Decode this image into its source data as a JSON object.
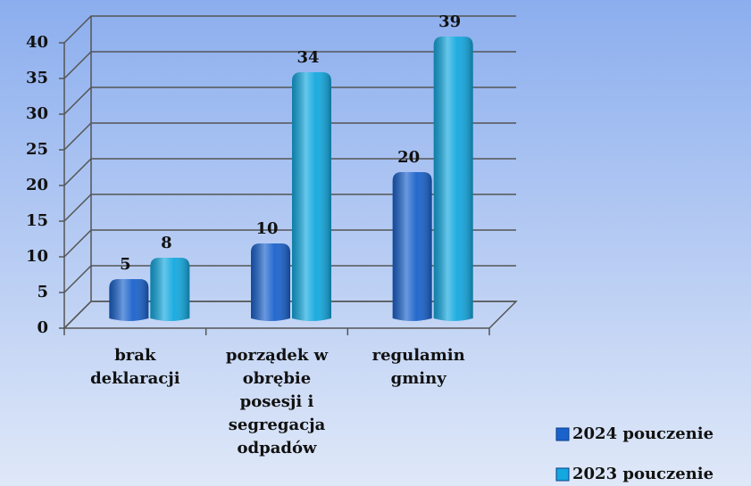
{
  "chart_data": {
    "type": "bar3d",
    "categories": [
      "brak deklaracji",
      "porządek w obrębie posesji i segregacja odpadów",
      "regulamin gminy"
    ],
    "series": [
      {
        "name": "2024 pouczenie",
        "color": "#1a62cc",
        "values": [
          5,
          10,
          20
        ]
      },
      {
        "name": "2023 pouczenie",
        "color": "#13a8df",
        "values": [
          8,
          34,
          39
        ]
      }
    ],
    "ylim": [
      0,
      40
    ],
    "yticks": [
      0,
      5,
      10,
      15,
      20,
      25,
      30,
      35,
      40
    ],
    "grid": true,
    "legend": "bottom-right"
  }
}
